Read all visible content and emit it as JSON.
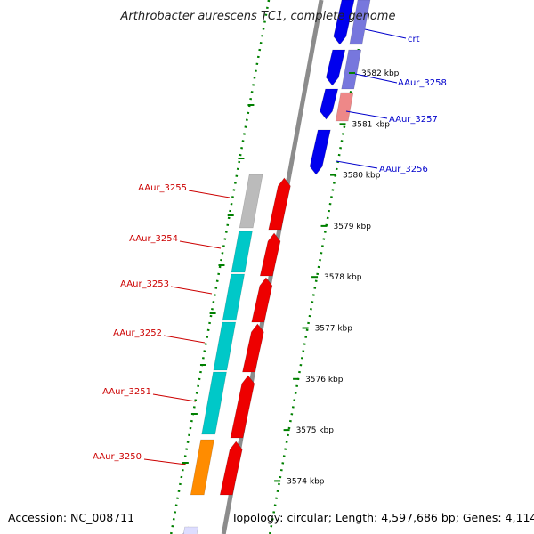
{
  "title": "Arthrobacter aurescens TC1, complete genome",
  "footer": {
    "accession": "Accession: NC_008711",
    "topology": "Topology: circular; Length: 4,597,686 bp; Genes: 4,114"
  },
  "colors": {
    "backbone": "#8c8c8c",
    "tick": "#008000",
    "forward_label": "#cc0000",
    "reverse_label": "#0000cc"
  },
  "scale_ticks": [
    {
      "label": "3582 kbp",
      "kbp": 3582
    },
    {
      "label": "3581 kbp",
      "kbp": 3581
    },
    {
      "label": "3580 kbp",
      "kbp": 3580
    },
    {
      "label": "3579 kbp",
      "kbp": 3579
    },
    {
      "label": "3578 kbp",
      "kbp": 3578
    },
    {
      "label": "3577 kbp",
      "kbp": 3577
    },
    {
      "label": "3576 kbp",
      "kbp": 3576
    },
    {
      "label": "3575 kbp",
      "kbp": 3575
    },
    {
      "label": "3574 kbp",
      "kbp": 3574
    }
  ],
  "genes": [
    {
      "name": "crt",
      "strand": "reverse",
      "color": "#7777dd"
    },
    {
      "name": "AAur_3258",
      "strand": "reverse",
      "color": "#7777dd"
    },
    {
      "name": "AAur_3257",
      "strand": "reverse",
      "color": "#ee8888"
    },
    {
      "name": "AAur_3256",
      "strand": "reverse",
      "color": "#0000ee"
    },
    {
      "name": "AAur_3255",
      "strand": "forward",
      "color": "#bbbbbb"
    },
    {
      "name": "AAur_3254",
      "strand": "forward",
      "color": "#00c8c8"
    },
    {
      "name": "AAur_3253",
      "strand": "forward",
      "color": "#00c8c8"
    },
    {
      "name": "AAur_3252",
      "strand": "forward",
      "color": "#00c8c8"
    },
    {
      "name": "AAur_3251",
      "strand": "forward",
      "color": "#00c8c8"
    },
    {
      "name": "AAur_3250",
      "strand": "forward",
      "color": "#ff8c00"
    }
  ]
}
